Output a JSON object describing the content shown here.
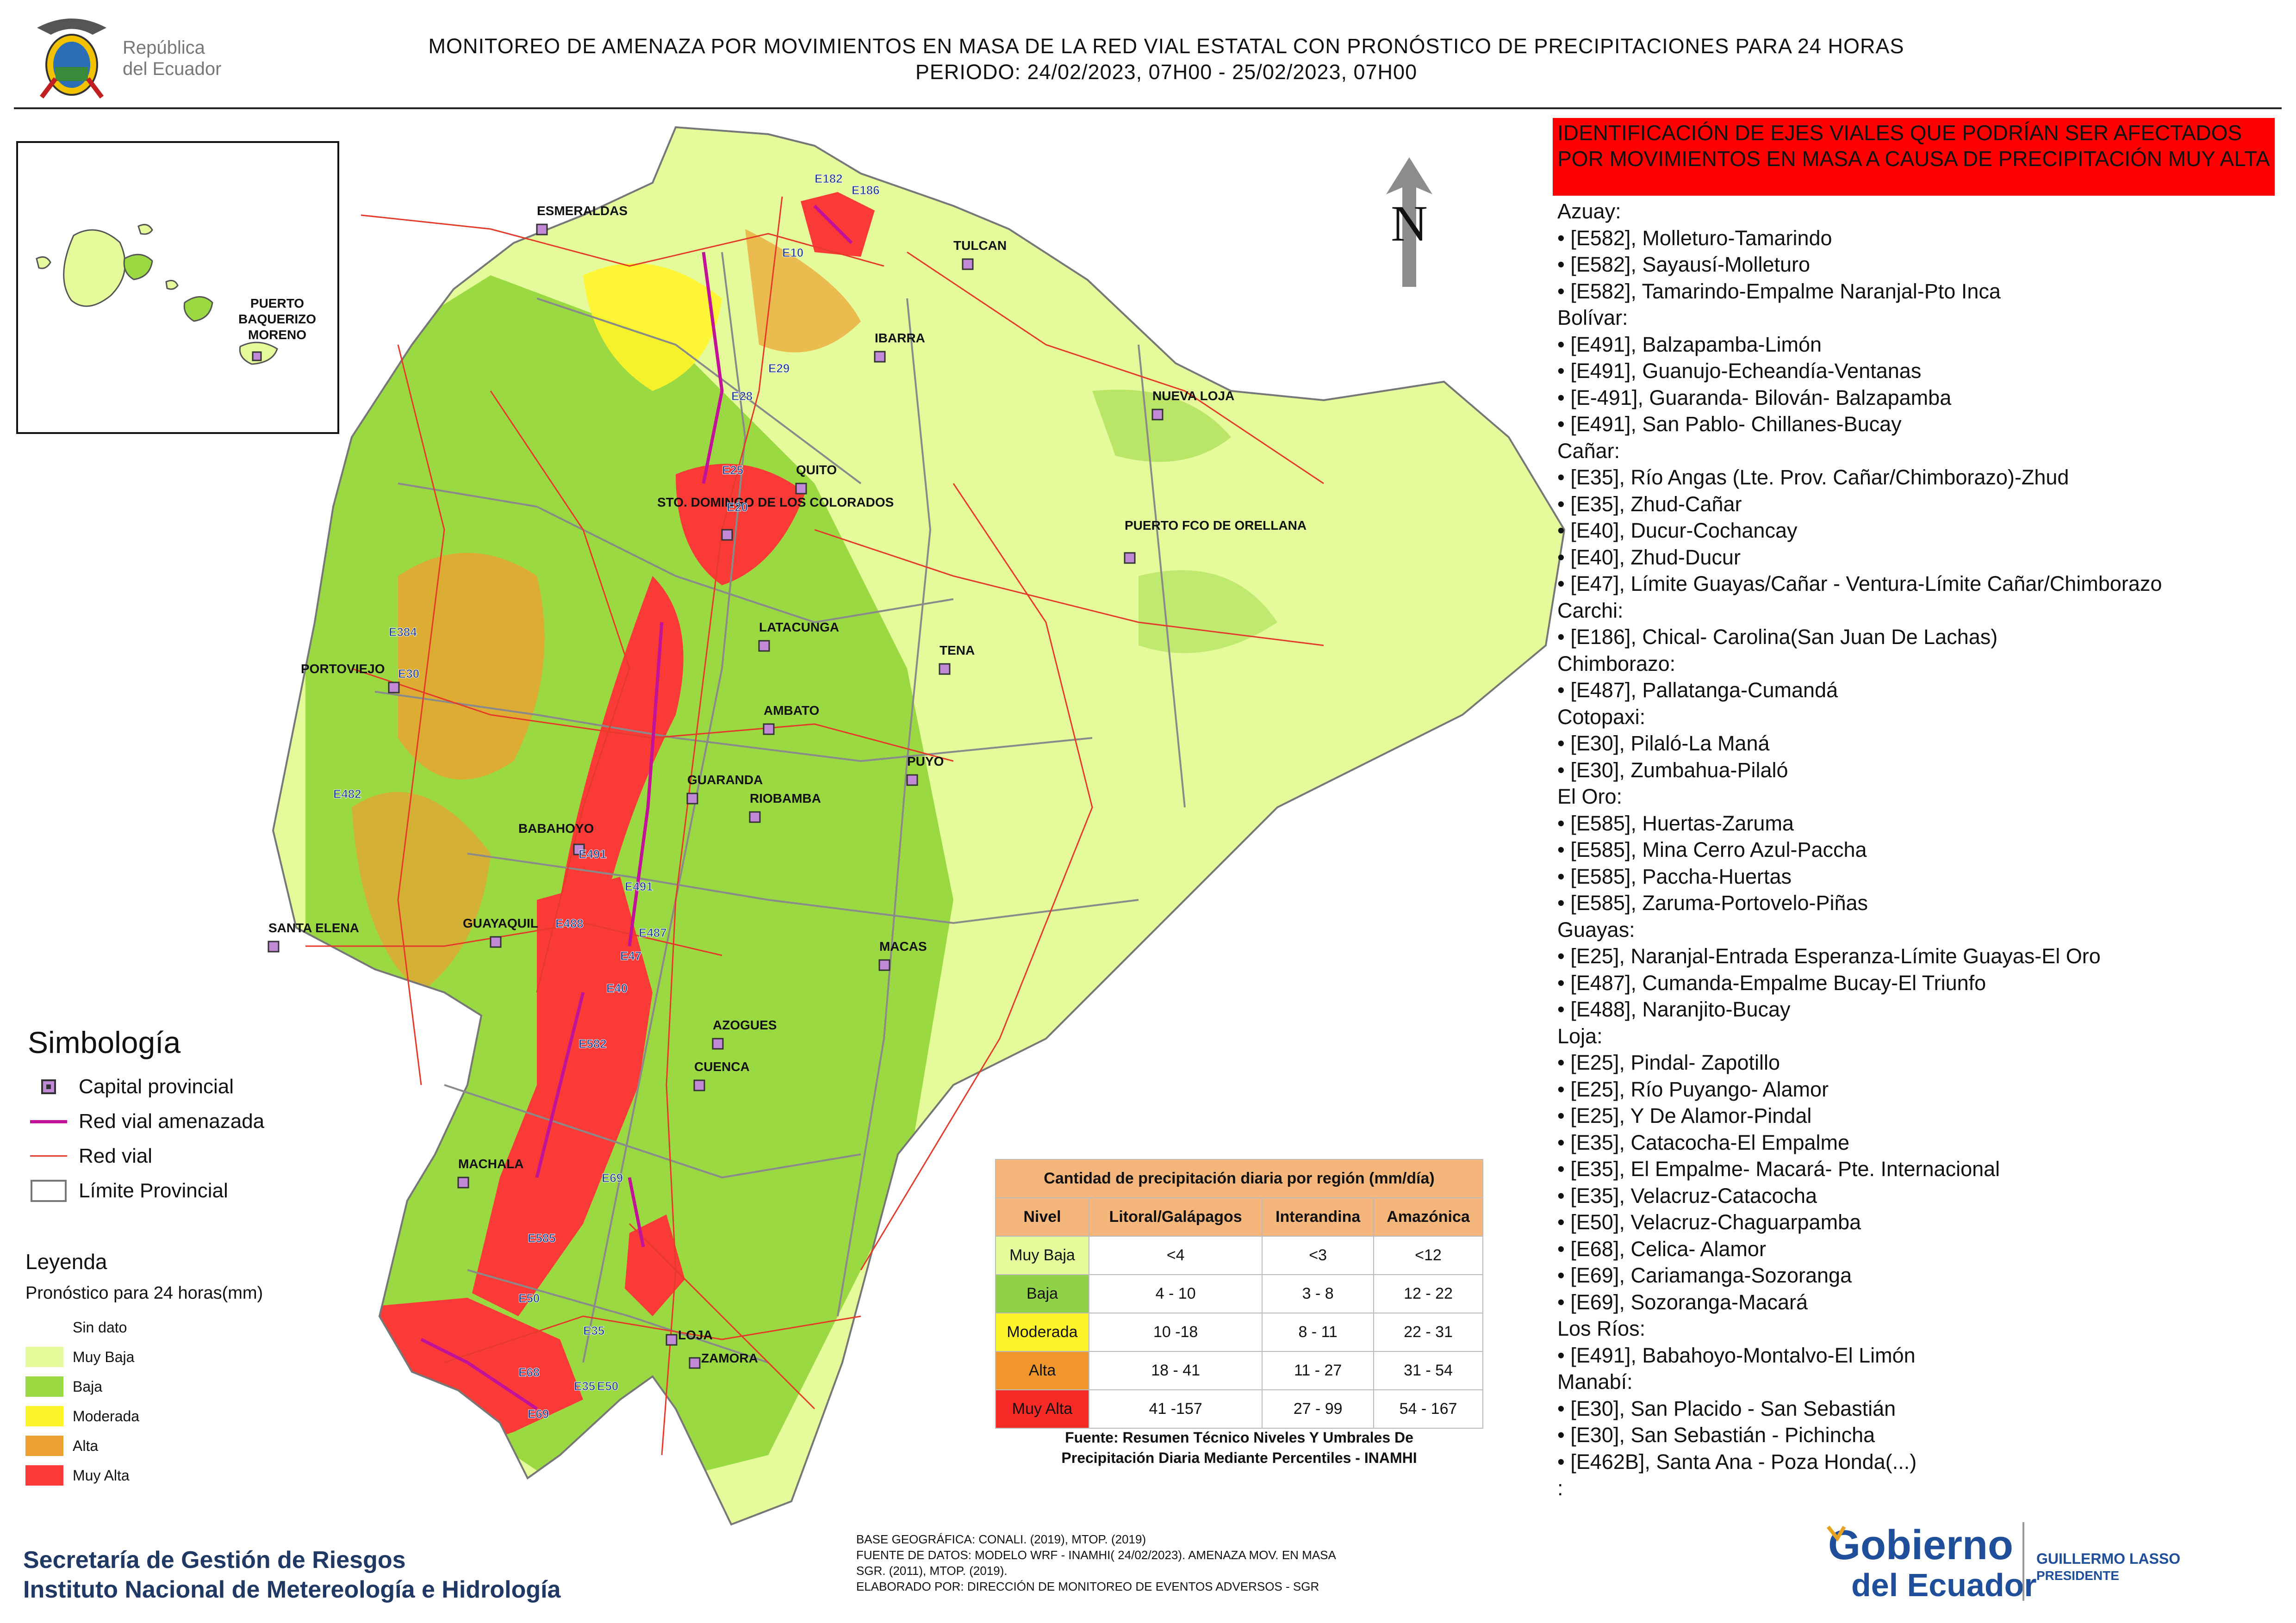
{
  "header": {
    "title_line1": "MONITOREO DE AMENAZA POR MOVIMIENTOS EN MASA DE LA RED VIAL  ESTATAL  CON PRONÓSTICO  DE  PRECIPITACIONES PARA 24 HORAS",
    "title_line2": "PERIODO: 24/02/2023, 07H00 - 25/02/2023, 07H00",
    "logo_text_line1": "República",
    "logo_text_line2": "del Ecuador"
  },
  "map": {
    "north_label": "N",
    "inset_city": "PUERTO BAQUERIZO MORENO",
    "cities": [
      "ESMERALDAS",
      "TULCAN",
      "IBARRA",
      "NUEVA LOJA",
      "QUITO",
      "STO. DOMINGO DE LOS COLORADOS",
      "PUERTO FCO DE ORELLANA",
      "PORTOVIEJO",
      "LATACUNGA",
      "TENA",
      "AMBATO",
      "PUYO",
      "GUARANDA",
      "RIOBAMBA",
      "BABAHOYO",
      "SANTA ELENA",
      "GUAYAQUIL",
      "MACAS",
      "AZOGUES",
      "CUENCA",
      "MACHALA",
      "LOJA",
      "ZAMORA"
    ],
    "road_codes": [
      "E182",
      "E186",
      "E10",
      "E29",
      "E28",
      "E25",
      "E20",
      "E384",
      "E30",
      "E482",
      "E491",
      "E491",
      "E488",
      "E487",
      "E47",
      "E40",
      "E582",
      "E69",
      "E585",
      "E50",
      "E35",
      "E68",
      "E35",
      "E50",
      "E69"
    ],
    "colors": {
      "muy_baja": "#e5fb9b",
      "baja": "#9bd943",
      "moderada": "#fff42a",
      "alta": "#eda02f",
      "muy_alta": "#f93a36",
      "red_vial": "#e53a2a",
      "red_vial_amenazada": "#c2129a",
      "limite": "#8a8a8a"
    }
  },
  "symbology": {
    "title": "Simbología",
    "items": [
      {
        "label": "Capital provincial"
      },
      {
        "label": "Red vial amenazada"
      },
      {
        "label": "Red vial"
      },
      {
        "label": "Límite Provincial"
      }
    ]
  },
  "legend": {
    "title": "Leyenda",
    "subtitle": "Pronóstico para 24 horas(mm)",
    "items": [
      {
        "label": "Sin dato",
        "color": "#ffffff"
      },
      {
        "label": "Muy Baja",
        "color": "#e5fb9b"
      },
      {
        "label": "Baja",
        "color": "#9bd943"
      },
      {
        "label": "Moderada",
        "color": "#fff42a"
      },
      {
        "label": "Alta",
        "color": "#eda02f"
      },
      {
        "label": "Muy Alta",
        "color": "#f93a36"
      }
    ]
  },
  "precip_table": {
    "title": "Cantidad de precipitación diaria por región (mm/día)",
    "headers": [
      "Nivel",
      "Litoral/Galápagos",
      "Interandina",
      "Amazónica"
    ],
    "rows": [
      {
        "nivel": "Muy Baja",
        "color": "#e5fb9b",
        "litoral": "<4",
        "interandina": "<3",
        "amazonica": "<12"
      },
      {
        "nivel": "Baja",
        "color": "#8fd147",
        "litoral": "4 - 10",
        "interandina": "3 - 8",
        "amazonica": "12 - 22"
      },
      {
        "nivel": "Moderada",
        "color": "#fff42a",
        "litoral": "10 -18",
        "interandina": "8 - 11",
        "amazonica": "22 - 31"
      },
      {
        "nivel": "Alta",
        "color": "#f0962d",
        "litoral": "18 - 41",
        "interandina": "11 - 27",
        "amazonica": "31 - 54"
      },
      {
        "nivel": "Muy Alta",
        "color": "#f72a26",
        "litoral": "41 -157",
        "interandina": "27 - 99",
        "amazonica": "54 - 167"
      }
    ],
    "source_line1": "Fuente: Resumen Técnico Niveles Y Umbrales De",
    "source_line2": "Precipitación Diaria Mediante Percentiles - INAMHI"
  },
  "alert_panel": {
    "banner": "IDENTIFICACIÓN DE EJES VIALES QUE PODRÍAN SER AFECTADOS POR MOVIMIENTOS EN MASA A CAUSA DE PRECIPITACIÓN MUY ALTA",
    "lines": [
      {
        "type": "prov",
        "text": "Azuay:"
      },
      {
        "type": "road",
        "text": "• [E582], Molleturo-Tamarindo"
      },
      {
        "type": "road",
        "text": "• [E582], Sayausí-Molleturo"
      },
      {
        "type": "road",
        "text": "• [E582], Tamarindo-Empalme Naranjal-Pto Inca"
      },
      {
        "type": "prov",
        "text": "Bolívar:"
      },
      {
        "type": "road",
        "text": "• [E491], Balzapamba-Limón"
      },
      {
        "type": "road",
        "text": "• [E491], Guanujo-Echeandía-Ventanas"
      },
      {
        "type": "road",
        "text": "• [E-491], Guaranda- Bilován- Balzapamba"
      },
      {
        "type": "road",
        "text": "• [E491], San Pablo- Chillanes-Bucay"
      },
      {
        "type": "prov",
        "text": "Cañar:"
      },
      {
        "type": "road",
        "text": "• [E35], Río Angas (Lte. Prov. Cañar/Chimborazo)-Zhud"
      },
      {
        "type": "road",
        "text": "• [E35], Zhud-Cañar"
      },
      {
        "type": "road",
        "text": "• [E40], Ducur-Cochancay"
      },
      {
        "type": "road",
        "text": "• [E40], Zhud-Ducur"
      },
      {
        "type": "road",
        "text": "• [E47], Límite Guayas/Cañar - Ventura-Límite Cañar/Chimborazo"
      },
      {
        "type": "prov",
        "text": "Carchi:"
      },
      {
        "type": "road",
        "text": "• [E186], Chical- Carolina(San Juan De Lachas)"
      },
      {
        "type": "prov",
        "text": "Chimborazo:"
      },
      {
        "type": "road",
        "text": "• [E487], Pallatanga-Cumandá"
      },
      {
        "type": "prov",
        "text": "Cotopaxi:"
      },
      {
        "type": "road",
        "text": "• [E30], Pilaló-La Maná"
      },
      {
        "type": "road",
        "text": "• [E30], Zumbahua-Pilaló"
      },
      {
        "type": "prov",
        "text": "El Oro:"
      },
      {
        "type": "road",
        "text": "• [E585], Huertas-Zaruma"
      },
      {
        "type": "road",
        "text": "• [E585], Mina Cerro Azul-Paccha"
      },
      {
        "type": "road",
        "text": "• [E585], Paccha-Huertas"
      },
      {
        "type": "road",
        "text": "• [E585], Zaruma-Portovelo-Piñas"
      },
      {
        "type": "prov",
        "text": "Guayas:"
      },
      {
        "type": "road",
        "text": "• [E25], Naranjal-Entrada Esperanza-Límite Guayas-El Oro"
      },
      {
        "type": "road",
        "text": "• [E487], Cumanda-Empalme Bucay-El Triunfo"
      },
      {
        "type": "road",
        "text": "• [E488], Naranjito-Bucay"
      },
      {
        "type": "prov",
        "text": "Loja:"
      },
      {
        "type": "road",
        "text": "• [E25], Pindal- Zapotillo"
      },
      {
        "type": "road",
        "text": "• [E25], Río Puyango- Alamor"
      },
      {
        "type": "road",
        "text": "• [E25], Y De Alamor-Pindal"
      },
      {
        "type": "road",
        "text": "• [E35], Catacocha-El Empalme"
      },
      {
        "type": "road",
        "text": "• [E35], El Empalme- Macará- Pte. Internacional"
      },
      {
        "type": "road",
        "text": "• [E35], Velacruz-Catacocha"
      },
      {
        "type": "road",
        "text": "• [E50], Velacruz-Chaguarpamba"
      },
      {
        "type": "road",
        "text": "• [E68], Celica- Alamor"
      },
      {
        "type": "road",
        "text": "• [E69], Cariamanga-Sozoranga"
      },
      {
        "type": "road",
        "text": "• [E69], Sozoranga-Macará"
      },
      {
        "type": "prov",
        "text": "Los Ríos:"
      },
      {
        "type": "road",
        "text": "• [E491], Babahoyo-Montalvo-El Limón"
      },
      {
        "type": "prov",
        "text": "Manabí:"
      },
      {
        "type": "road",
        "text": "• [E30], San Placido - San Sebastián"
      },
      {
        "type": "road",
        "text": "• [E30], San Sebastián - Pichincha"
      },
      {
        "type": "road",
        "text": "• [E462B], Santa Ana - Poza Honda(...)"
      },
      {
        "type": "prov",
        "text": ":"
      }
    ]
  },
  "footer": {
    "org_line1": "Secretaría de Gestión de Riesgos",
    "org_line2": "Instituto Nacional de Metereología e Hidrología",
    "credits": [
      "BASE GEOGRÁFICA: CONALI. (2019), MTOP. (2019)",
      "FUENTE DE DATOS: MODELO WRF - INAMHI( 24/02/2023).  AMENAZA MOV. EN MASA",
      "SGR. (2011), MTOP. (2019).",
      "ELABORADO POR: DIRECCIÓN DE MONITOREO DE EVENTOS ADVERSOS - SGR"
    ],
    "gov_logo_line1": "Gobierno",
    "gov_logo_line2": "del Ecuador",
    "president_line1": "GUILLERMO LASSO",
    "president_line2": "PRESIDENTE"
  }
}
